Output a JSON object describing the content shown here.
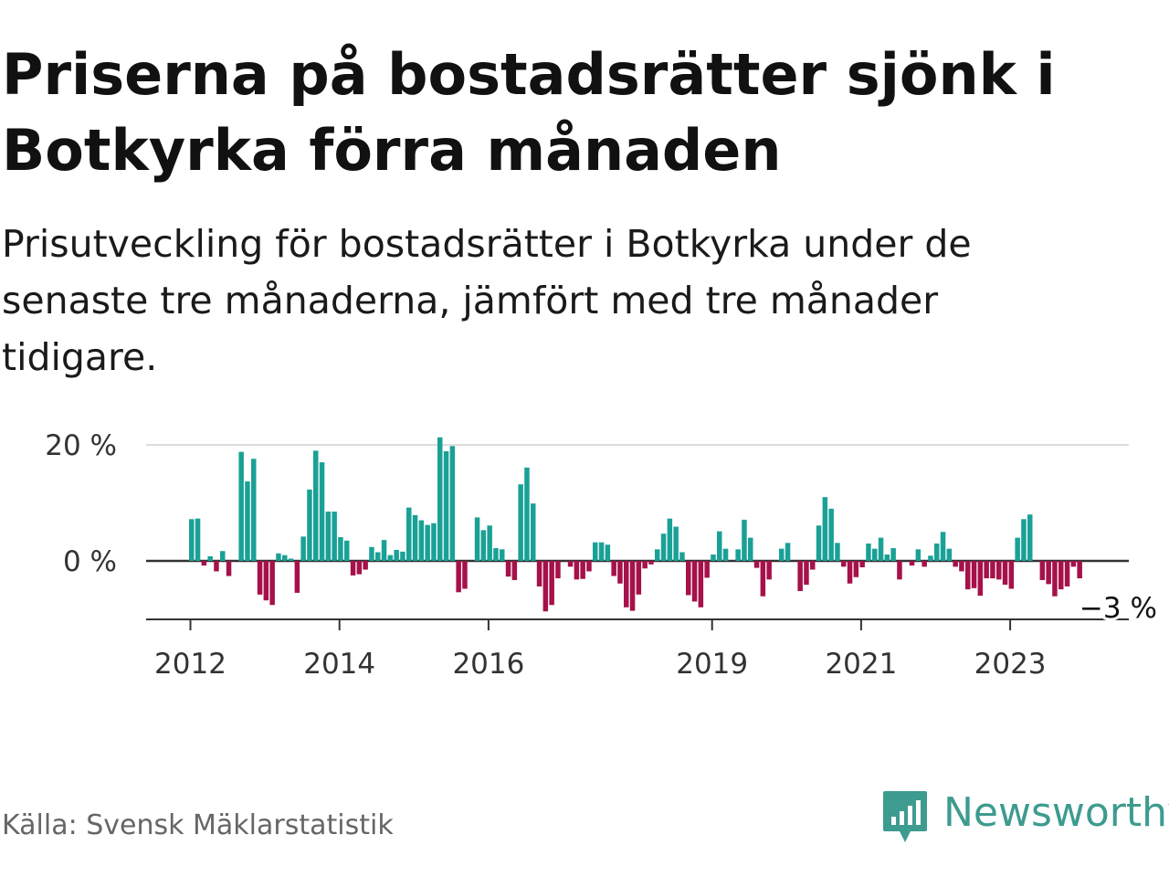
{
  "title": "Priserna på bostadsrätter sjönk i Botkyrka förra månaden",
  "subtitle": "Prisutveckling för bostadsrätter i Botkyrka under de senaste tre månaderna, jämfört med tre månader tidigare.",
  "source": "Källa: Svensk Mäklarstatistik",
  "brand": {
    "name": "Newsworthy",
    "icon": "newsworthy-logo-icon"
  },
  "colors": {
    "positive": "#1aa196",
    "negative": "#a6114a",
    "axis": "#333333",
    "grid": "#dddddd"
  },
  "chart_data": {
    "type": "bar",
    "title": "Priserna på bostadsrätter sjönk i Botkyrka förra månaden",
    "xlabel": "",
    "ylabel": "",
    "ylim": [
      -10,
      22
    ],
    "y_ticks": [
      {
        "value": 0,
        "label": "0 %"
      },
      {
        "value": 20,
        "label": "20 %"
      }
    ],
    "x_ticks": [
      {
        "year": 2012,
        "month": 1,
        "label": "2012"
      },
      {
        "year": 2014,
        "month": 1,
        "label": "2014"
      },
      {
        "year": 2016,
        "month": 1,
        "label": "2016"
      },
      {
        "year": 2019,
        "month": 1,
        "label": "2019"
      },
      {
        "year": 2021,
        "month": 1,
        "label": "2021"
      },
      {
        "year": 2023,
        "month": 1,
        "label": "2023"
      }
    ],
    "start": {
      "year": 2012,
      "month": 1
    },
    "unit": "%",
    "last_value_label": "−3 %",
    "values": [
      7.2,
      7.3,
      -0.8,
      0.8,
      -1.8,
      1.7,
      -2.6,
      null,
      18.8,
      13.7,
      17.6,
      -5.8,
      -6.8,
      -7.6,
      1.3,
      1.0,
      0.4,
      -5.5,
      4.2,
      12.3,
      19.0,
      17.0,
      8.5,
      8.5,
      4.1,
      3.5,
      -2.5,
      -2.3,
      -1.5,
      2.4,
      1.5,
      3.6,
      1.0,
      1.9,
      1.6,
      9.2,
      7.9,
      7.0,
      6.2,
      6.5,
      21.3,
      18.9,
      19.8,
      -5.4,
      -4.8,
      null,
      7.5,
      5.3,
      6.1,
      2.2,
      2.0,
      -2.7,
      -3.3,
      13.2,
      16.1,
      9.9,
      -4.4,
      -8.7,
      -7.6,
      -3.0,
      null,
      -1.0,
      -3.2,
      -3.1,
      -1.8,
      3.2,
      3.2,
      2.8,
      -2.6,
      -3.9,
      -8.0,
      -8.6,
      -5.8,
      -1.3,
      -0.6,
      2.0,
      4.7,
      7.3,
      5.9,
      1.5,
      -5.9,
      -7.0,
      -8.0,
      -2.9,
      1.1,
      5.1,
      2.1,
      null,
      2.0,
      7.1,
      4.0,
      -1.2,
      -6.1,
      -3.2,
      null,
      2.1,
      3.1,
      null,
      -5.2,
      -4.1,
      -1.5,
      6.1,
      11.0,
      9.0,
      3.1,
      -1.0,
      -3.9,
      -2.8,
      -1.1,
      3.0,
      2.1,
      4.0,
      1.1,
      2.2,
      -3.2,
      null,
      -0.8,
      2.0,
      -1.0,
      0.9,
      3.0,
      5.0,
      2.1,
      -1.0,
      -1.8,
      -4.9,
      -4.7,
      -6.0,
      -3.0,
      -3.0,
      -3.2,
      -4.1,
      -4.8,
      4.0,
      7.2,
      8.0,
      null,
      -3.3,
      -4.0,
      -6.1,
      -4.9,
      -4.4,
      -1.0,
      -3.0
    ]
  }
}
